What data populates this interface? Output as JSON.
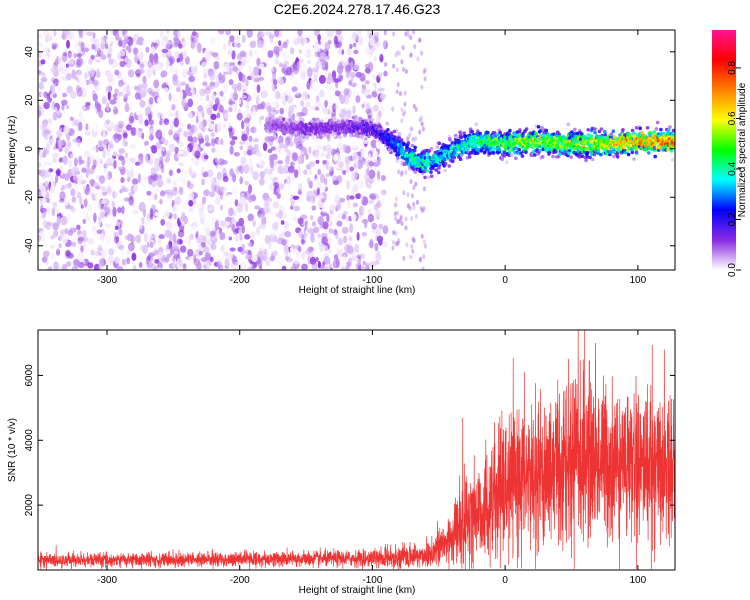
{
  "title": "C2E6.2024.278.17.46.G23",
  "chart_data": [
    {
      "type": "heatmap",
      "xlabel": "Height of straight line (km)",
      "ylabel": "Frequency (Hz)",
      "xlim": [
        -352,
        128
      ],
      "ylim": [
        -50,
        49
      ],
      "xticks": [
        -300,
        -200,
        -100,
        0,
        100
      ],
      "yticks": [
        -40,
        -20,
        0,
        20,
        40
      ],
      "xtick_labels": [
        "-300",
        "-200",
        "-100",
        "0",
        "100"
      ],
      "ytick_labels": [
        "-40",
        "-20",
        "0",
        "20",
        "40"
      ],
      "colorbar": {
        "label": "Normalized spectral amplitude",
        "range": [
          0,
          0.95
        ],
        "ticks": [
          0.0,
          0.2,
          0.4,
          0.6,
          0.8
        ],
        "tick_labels": [
          "0.0",
          "0.2",
          "0.4",
          "0.6",
          "0.8"
        ],
        "colormap": [
          "#ffffff",
          "#8a2be2",
          "#0000ff",
          "#00ffff",
          "#00ff00",
          "#ffff00",
          "#ff8000",
          "#ff0000",
          "#ff1493"
        ]
      },
      "noise_region_x": [
        -352,
        -90
      ],
      "signal_ridge": {
        "x": [
          -180,
          -150,
          -120,
          -100,
          -85,
          -75,
          -70,
          -60,
          -50,
          -40,
          -30,
          -20,
          0,
          25,
          50,
          75,
          100,
          128
        ],
        "frequency": [
          10,
          8,
          9,
          8,
          3,
          -2,
          -4,
          -6,
          -4,
          -1,
          2,
          3,
          2,
          3,
          2,
          2,
          3,
          3
        ],
        "amplitude": [
          0.1,
          0.15,
          0.15,
          0.2,
          0.3,
          0.4,
          0.45,
          0.45,
          0.4,
          0.4,
          0.45,
          0.5,
          0.55,
          0.6,
          0.6,
          0.65,
          0.75,
          0.8
        ]
      }
    },
    {
      "type": "line",
      "xlabel": "Height of straight line (km)",
      "ylabel": "SNR (10 * v/v)",
      "xlim": [
        -352,
        128
      ],
      "ylim": [
        0,
        7400
      ],
      "xticks": [
        -300,
        -200,
        -100,
        0,
        100
      ],
      "yticks": [
        2000,
        4000,
        6000
      ],
      "xtick_labels": [
        "-300",
        "-200",
        "-100",
        "0",
        "100"
      ],
      "ytick_labels": [
        "2000",
        "4000",
        "6000"
      ],
      "color": "#ee3333",
      "envelope": {
        "x": [
          -352,
          -250,
          -150,
          -100,
          -60,
          -45,
          -35,
          -25,
          -10,
          0,
          20,
          40,
          60,
          80,
          100,
          128
        ],
        "mean": [
          300,
          320,
          340,
          360,
          450,
          800,
          1300,
          1700,
          2000,
          2500,
          3000,
          3300,
          3500,
          3300,
          3200,
          3300
        ],
        "spread": [
          150,
          160,
          170,
          180,
          300,
          600,
          900,
          1100,
          1300,
          1500,
          1700,
          1800,
          1800,
          1700,
          1700,
          1600
        ]
      },
      "peaks": [
        {
          "x": -32,
          "y": 4700
        },
        {
          "x": 55,
          "y": 7400
        },
        {
          "x": 60,
          "y": 7400
        },
        {
          "x": 68,
          "y": 7000
        },
        {
          "x": 120,
          "y": 6800
        }
      ]
    }
  ]
}
